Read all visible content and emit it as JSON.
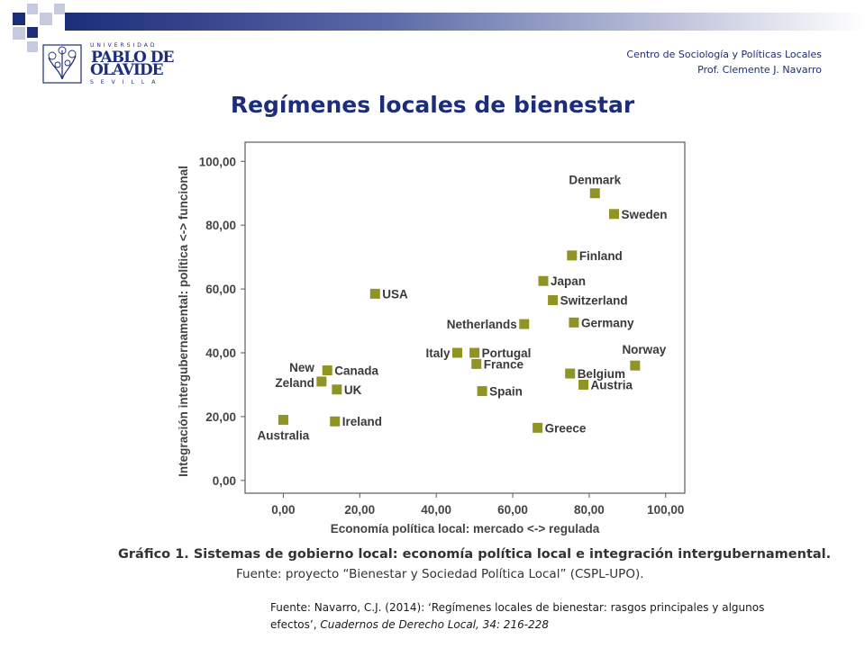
{
  "header": {
    "logo": {
      "top_text": "UNIVERSIDAD",
      "name_line1": "PABLO DE",
      "name_line2": "OLAVIDE",
      "bottom_text": "SEVILLA"
    },
    "org_line1": "Centro de Sociología y Políticas Locales",
    "org_line2": "Prof. Clemente J. Navarro"
  },
  "slide_title": "Regímenes locales de bienestar",
  "colors": {
    "brand": "#1c2d7a",
    "marker": "#8f9424"
  },
  "chart_data": {
    "type": "scatter",
    "xlabel": "Economía política local: mercado <-> regulada",
    "ylabel": "Integración intergubernamental: política <-> funcional",
    "xlim": [
      -10,
      105
    ],
    "ylim": [
      -4,
      106
    ],
    "xticks": [
      "0,00",
      "20,00",
      "40,00",
      "60,00",
      "80,00",
      "100,00"
    ],
    "xtick_values": [
      0,
      20,
      40,
      60,
      80,
      100
    ],
    "yticks": [
      "0,00",
      "20,00",
      "40,00",
      "60,00",
      "80,00",
      "100,00"
    ],
    "ytick_values": [
      0,
      20,
      40,
      60,
      80,
      100
    ],
    "grid": false,
    "points": [
      {
        "label": "Denmark",
        "x": 81.5,
        "y": 90,
        "pos": "above"
      },
      {
        "label": "Sweden",
        "x": 86.5,
        "y": 83.5,
        "pos": "right"
      },
      {
        "label": "Finland",
        "x": 75.5,
        "y": 70.5,
        "pos": "right"
      },
      {
        "label": "USA",
        "x": 24,
        "y": 58.5,
        "pos": "right"
      },
      {
        "label": "Japan",
        "x": 68,
        "y": 62.5,
        "pos": "right"
      },
      {
        "label": "Switzerland",
        "x": 70.5,
        "y": 56.5,
        "pos": "right"
      },
      {
        "label": "Netherlands",
        "x": 63,
        "y": 49,
        "pos": "left"
      },
      {
        "label": "Germany",
        "x": 76,
        "y": 49.5,
        "pos": "right"
      },
      {
        "label": "Italy",
        "x": 45.5,
        "y": 40,
        "pos": "left"
      },
      {
        "label": "Portugal",
        "x": 50,
        "y": 40,
        "pos": "right"
      },
      {
        "label": "France",
        "x": 50.5,
        "y": 36.5,
        "pos": "right"
      },
      {
        "label": "Norway",
        "x": 92,
        "y": 36,
        "pos": "aboveleft"
      },
      {
        "label": "Canada",
        "x": 11.5,
        "y": 34.5,
        "pos": "right"
      },
      {
        "label": "New\nZeland",
        "x": 10,
        "y": 31,
        "pos": "left"
      },
      {
        "label": "UK",
        "x": 14,
        "y": 28.5,
        "pos": "right"
      },
      {
        "label": "Belgium",
        "x": 75,
        "y": 33.5,
        "pos": "right"
      },
      {
        "label": "Austria",
        "x": 78.5,
        "y": 30,
        "pos": "right"
      },
      {
        "label": "Spain",
        "x": 52,
        "y": 28,
        "pos": "right"
      },
      {
        "label": "Australia",
        "x": 0,
        "y": 19,
        "pos": "below"
      },
      {
        "label": "Ireland",
        "x": 13.5,
        "y": 18.5,
        "pos": "right"
      },
      {
        "label": "Greece",
        "x": 66.5,
        "y": 16.5,
        "pos": "right"
      }
    ]
  },
  "caption": {
    "line1": "Gráfico 1. Sistemas de gobierno local: economía política local e integración intergubernamental.",
    "line2": "Fuente: proyecto “Bienestar y Sociedad Política Local” (CSPL-UPO)."
  },
  "source_note": {
    "prefix": "Fuente: Navarro, C.J. (2014): ‘Regímenes locales de bienestar: rasgos principales y algunos efectos’, ",
    "journal": "Cuadernos de Derecho Local, 34: 216-228"
  }
}
